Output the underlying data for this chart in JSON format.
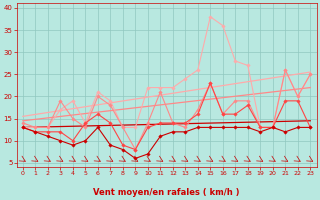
{
  "xlabel": "Vent moyen/en rafales ( km/h )",
  "xlim": [
    -0.5,
    23.5
  ],
  "ylim": [
    4,
    41
  ],
  "yticks": [
    5,
    10,
    15,
    20,
    25,
    30,
    35,
    40
  ],
  "xticks": [
    0,
    1,
    2,
    3,
    4,
    5,
    6,
    7,
    8,
    9,
    10,
    11,
    12,
    13,
    14,
    15,
    16,
    17,
    18,
    19,
    20,
    21,
    22,
    23
  ],
  "bg_color": "#b8e8e0",
  "grid_color": "#90c8c0",
  "lines": [
    {
      "x": [
        0,
        23
      ],
      "y": [
        15.5,
        25.5
      ],
      "color": "#ffaaaa",
      "lw": 0.9,
      "marker": null
    },
    {
      "x": [
        0,
        23
      ],
      "y": [
        14.5,
        22.0
      ],
      "color": "#ff8888",
      "lw": 0.9,
      "marker": null
    },
    {
      "x": [
        0,
        23
      ],
      "y": [
        13.0,
        14.5
      ],
      "color": "#cc0000",
      "lw": 0.9,
      "marker": null
    },
    {
      "x": [
        0,
        1,
        2,
        3,
        4,
        5,
        6,
        7,
        8,
        9,
        10,
        11,
        12,
        13,
        14,
        15,
        16,
        17,
        18,
        19,
        20,
        21,
        22,
        23
      ],
      "y": [
        13,
        13,
        13,
        17,
        19,
        14,
        21,
        19,
        13,
        13,
        22,
        22,
        22,
        24,
        26,
        38,
        36,
        28,
        27,
        13,
        13,
        26,
        20,
        25
      ],
      "color": "#ffaaaa",
      "lw": 0.8,
      "marker": "D",
      "ms": 1.8
    },
    {
      "x": [
        0,
        1,
        2,
        3,
        4,
        5,
        6,
        7,
        8,
        9,
        10,
        11,
        12,
        13,
        14,
        15,
        16,
        17,
        18,
        19,
        20,
        21,
        22,
        23
      ],
      "y": [
        14,
        13,
        13,
        19,
        15,
        13,
        20,
        18,
        13,
        8,
        14,
        21,
        14,
        13,
        17,
        23,
        16,
        19,
        19,
        13,
        13,
        26,
        20,
        25
      ],
      "color": "#ff8888",
      "lw": 0.8,
      "marker": "D",
      "ms": 1.8
    },
    {
      "x": [
        0,
        1,
        2,
        3,
        4,
        5,
        6,
        7,
        8,
        9,
        10,
        11,
        12,
        13,
        14,
        15,
        16,
        17,
        18,
        19,
        20,
        21,
        22,
        23
      ],
      "y": [
        13,
        12,
        12,
        12,
        10,
        14,
        16,
        14,
        9,
        8,
        13,
        14,
        14,
        14,
        16,
        23,
        16,
        16,
        18,
        13,
        13,
        19,
        19,
        13
      ],
      "color": "#ff4444",
      "lw": 0.8,
      "marker": "D",
      "ms": 1.8
    },
    {
      "x": [
        0,
        1,
        2,
        3,
        4,
        5,
        6,
        7,
        8,
        9,
        10,
        11,
        12,
        13,
        14,
        15,
        16,
        17,
        18,
        19,
        20,
        21,
        22,
        23
      ],
      "y": [
        13,
        12,
        11,
        10,
        9,
        10,
        13,
        9,
        8,
        6,
        7,
        11,
        12,
        12,
        13,
        13,
        13,
        13,
        13,
        12,
        13,
        12,
        13,
        13
      ],
      "color": "#cc0000",
      "lw": 0.8,
      "marker": "D",
      "ms": 1.8
    }
  ],
  "arrow_color": "#cc0000",
  "tick_color": "#cc0000",
  "label_color": "#cc0000",
  "spine_color": "#cc0000"
}
